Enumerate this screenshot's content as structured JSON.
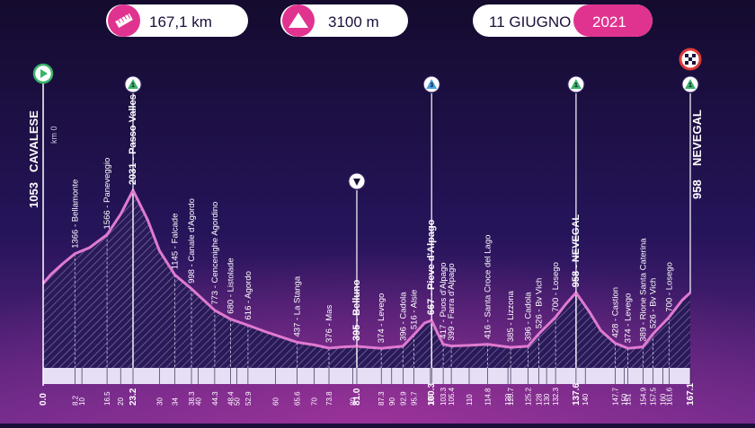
{
  "header": {
    "distance": "167,1 km",
    "distance_icon": "ruler-icon",
    "elevation": "3100 m",
    "elevation_icon": "mountain-icon",
    "date": "11 GIUGNO",
    "year": "2021"
  },
  "colors": {
    "background": "#1b0f3a",
    "accent_pink": "#e0338f",
    "profile_line": "#e07ad0",
    "fill_hatch": "#a79bc7",
    "white": "#ffffff"
  },
  "start": {
    "elevation": "1053",
    "name": "CAVALESE",
    "km_note": "km 0",
    "icon": "start-play-icon"
  },
  "finish": {
    "elevation": "958",
    "name": "NEVEGAL",
    "icon": "finish-flag-icon"
  },
  "markers": [
    {
      "name": "passo-valles",
      "icon": "climb-category-1-icon",
      "label": "1"
    },
    {
      "name": "descent-belluno",
      "icon": "descent-marker-icon",
      "label": ""
    },
    {
      "name": "pieve-dalpago",
      "icon": "climb-category-3-icon",
      "label": "3"
    },
    {
      "name": "nevegal-climb",
      "icon": "climb-category-1-icon",
      "label": "1"
    },
    {
      "name": "nevegal-finish",
      "icon": "climb-category-1-icon",
      "label": "1"
    }
  ],
  "chart_data": {
    "type": "area",
    "title": "",
    "xlabel": "",
    "ylabel": "",
    "x_unit": "km",
    "y_unit": "m",
    "km_ticks": [
      0.0,
      8.2,
      10,
      16.5,
      20,
      23.2,
      30,
      34.0,
      38.3,
      40,
      44.3,
      48.4,
      50,
      52.9,
      60,
      65.6,
      70,
      73.8,
      80,
      81.0,
      87.3,
      90,
      92.9,
      95.7,
      100,
      100.3,
      103.3,
      105.4,
      110,
      114.8,
      120,
      120.7,
      125.2,
      128.0,
      130,
      132.3,
      137.6,
      140,
      147.7,
      150,
      151.0,
      154.9,
      157.5,
      160,
      161.6,
      167.1
    ],
    "bold_km": [
      0.0,
      23.2,
      81.0,
      100.3,
      137.6,
      167.1
    ],
    "profile": [
      {
        "km": 0.0,
        "elev": 1053
      },
      {
        "km": 2.0,
        "elev": 1150
      },
      {
        "km": 5.0,
        "elev": 1260
      },
      {
        "km": 8.2,
        "elev": 1366
      },
      {
        "km": 12.0,
        "elev": 1430
      },
      {
        "km": 16.5,
        "elev": 1566
      },
      {
        "km": 20.0,
        "elev": 1780
      },
      {
        "km": 23.2,
        "elev": 2031
      },
      {
        "km": 27.0,
        "elev": 1720
      },
      {
        "km": 30.0,
        "elev": 1400
      },
      {
        "km": 34.0,
        "elev": 1145
      },
      {
        "km": 38.3,
        "elev": 998
      },
      {
        "km": 44.3,
        "elev": 773
      },
      {
        "km": 48.4,
        "elev": 680
      },
      {
        "km": 52.9,
        "elev": 616
      },
      {
        "km": 58.0,
        "elev": 540
      },
      {
        "km": 65.6,
        "elev": 437
      },
      {
        "km": 70.0,
        "elev": 410
      },
      {
        "km": 73.8,
        "elev": 376
      },
      {
        "km": 78.0,
        "elev": 390
      },
      {
        "km": 81.0,
        "elev": 395
      },
      {
        "km": 87.3,
        "elev": 374
      },
      {
        "km": 92.9,
        "elev": 396
      },
      {
        "km": 95.7,
        "elev": 516
      },
      {
        "km": 98.5,
        "elev": 640
      },
      {
        "km": 100.3,
        "elev": 667
      },
      {
        "km": 102.0,
        "elev": 520
      },
      {
        "km": 103.3,
        "elev": 417
      },
      {
        "km": 105.4,
        "elev": 399
      },
      {
        "km": 110.0,
        "elev": 405
      },
      {
        "km": 114.8,
        "elev": 416
      },
      {
        "km": 120.7,
        "elev": 385
      },
      {
        "km": 125.2,
        "elev": 396
      },
      {
        "km": 128.0,
        "elev": 526
      },
      {
        "km": 132.3,
        "elev": 700
      },
      {
        "km": 135.0,
        "elev": 840
      },
      {
        "km": 137.6,
        "elev": 958
      },
      {
        "km": 141.0,
        "elev": 760
      },
      {
        "km": 144.0,
        "elev": 560
      },
      {
        "km": 147.7,
        "elev": 428
      },
      {
        "km": 151.0,
        "elev": 374
      },
      {
        "km": 154.9,
        "elev": 389
      },
      {
        "km": 157.5,
        "elev": 526
      },
      {
        "km": 161.6,
        "elev": 700
      },
      {
        "km": 165.0,
        "elev": 880
      },
      {
        "km": 167.1,
        "elev": 958
      }
    ],
    "waypoints": [
      {
        "km": 8.2,
        "label": "1366 - Bellamonte"
      },
      {
        "km": 16.5,
        "label": "1566 - Paneveggio"
      },
      {
        "km": 23.2,
        "label": "2031 - Passo Valles",
        "major": true
      },
      {
        "km": 34.0,
        "label": "1145 - Falcade"
      },
      {
        "km": 38.3,
        "label": "998 - Canale d'Agordo"
      },
      {
        "km": 44.3,
        "label": "773 - Cencenighe Agordino"
      },
      {
        "km": 48.4,
        "label": "680 - Listolade"
      },
      {
        "km": 52.9,
        "label": "616 - Agordo"
      },
      {
        "km": 65.6,
        "label": "437 - La Stanga"
      },
      {
        "km": 73.8,
        "label": "376 - Mas"
      },
      {
        "km": 81.0,
        "label": "395 - Belluno",
        "major": true
      },
      {
        "km": 87.3,
        "label": "374 - Levego"
      },
      {
        "km": 92.9,
        "label": "396 - Cadola"
      },
      {
        "km": 95.7,
        "label": "516 - Alsie"
      },
      {
        "km": 100.3,
        "label": "667 - Pieve d'Alpago",
        "major": true
      },
      {
        "km": 103.3,
        "label": "417 - Puos d'Alpago"
      },
      {
        "km": 105.4,
        "label": "399 - Farra d'Alpago"
      },
      {
        "km": 114.8,
        "label": "416 - Santa Croce del Lago"
      },
      {
        "km": 120.7,
        "label": "385 - Lizzona"
      },
      {
        "km": 125.2,
        "label": "396 - Cadola"
      },
      {
        "km": 128.0,
        "label": "526 - Bv Vich"
      },
      {
        "km": 132.3,
        "label": "700 - Losego"
      },
      {
        "km": 137.6,
        "label": "958 - NEVEGAL",
        "major": true
      },
      {
        "km": 147.7,
        "label": "428 - Castion"
      },
      {
        "km": 151.0,
        "label": "374 - Levego"
      },
      {
        "km": 154.9,
        "label": "389 - Rione Santa Caterina"
      },
      {
        "km": 157.5,
        "label": "526 - Bv Vich"
      },
      {
        "km": 161.6,
        "label": "700 - Losego"
      }
    ],
    "markers_km": [
      23.2,
      81.0,
      100.3,
      137.6,
      167.1
    ],
    "xlim": [
      0,
      167.1
    ],
    "grid": false,
    "legend": "none"
  }
}
